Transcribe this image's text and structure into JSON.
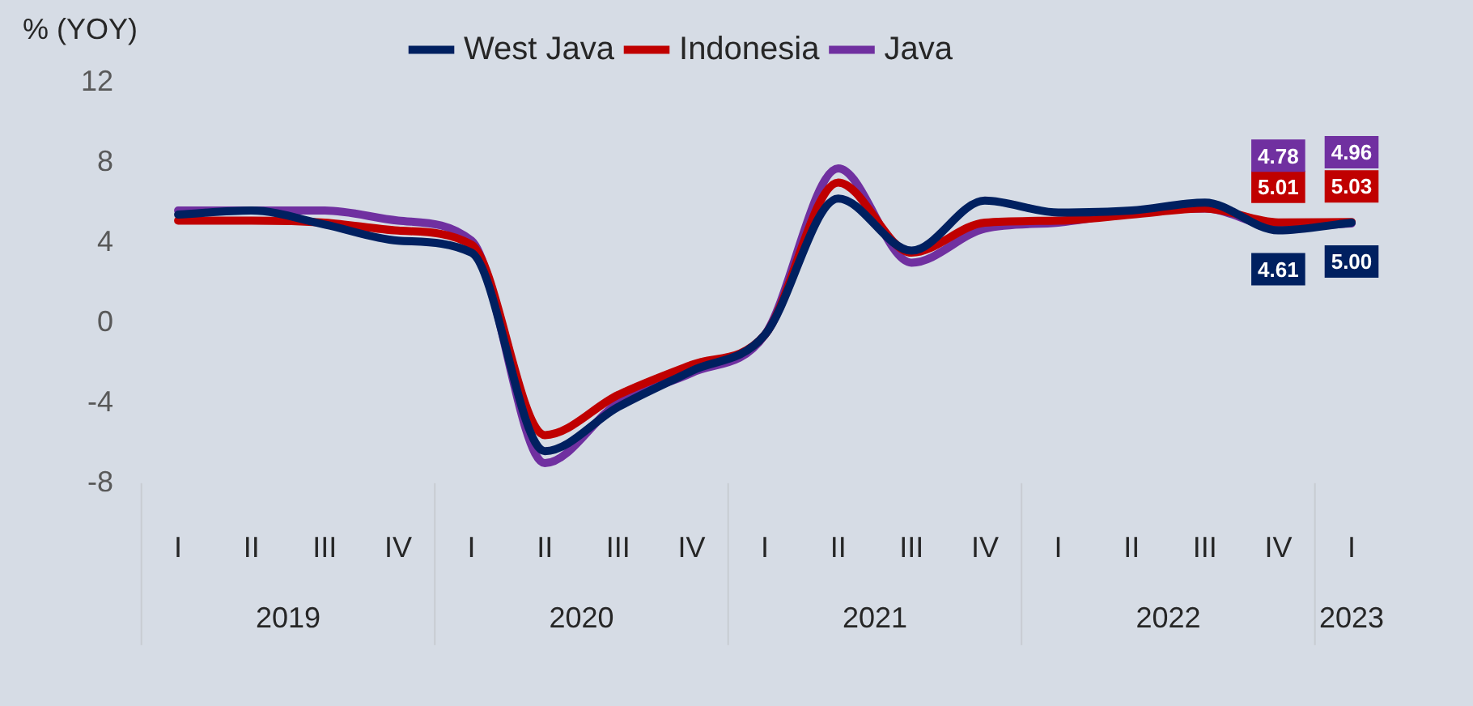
{
  "chart_data": {
    "type": "line",
    "ylabel": "% (YOY)",
    "legend": "top",
    "categories": [
      "I",
      "II",
      "III",
      "IV",
      "I",
      "II",
      "III",
      "IV",
      "I",
      "II",
      "III",
      "IV",
      "I",
      "II",
      "III",
      "IV",
      "I"
    ],
    "annotations": [
      "2019",
      "2020",
      "2021",
      "2022",
      "2023"
    ],
    "ylim": [
      -8,
      12
    ],
    "yticks": [
      -8,
      -4,
      0,
      4,
      8,
      12
    ],
    "grid": false,
    "marker": "none",
    "series": [
      {
        "name": "West Java",
        "color": "#002060",
        "values": [
          5.4,
          5.6,
          4.9,
          4.1,
          3.5,
          -6.4,
          -4.2,
          -2.4,
          -0.6,
          6.2,
          3.6,
          6.1,
          5.5,
          5.6,
          6.0,
          4.61,
          5.0
        ],
        "value_labels": [
          null,
          null,
          null,
          null,
          null,
          null,
          null,
          null,
          null,
          null,
          null,
          null,
          null,
          null,
          null,
          "4.61",
          "5.00"
        ]
      },
      {
        "name": "Indonesia",
        "color": "#c00000",
        "values": [
          5.1,
          5.1,
          5.0,
          4.6,
          3.9,
          -5.6,
          -3.6,
          -2.1,
          -0.6,
          7.0,
          3.5,
          5.0,
          5.1,
          5.4,
          5.7,
          5.01,
          5.03
        ],
        "value_labels": [
          null,
          null,
          null,
          null,
          null,
          null,
          null,
          null,
          null,
          null,
          null,
          null,
          null,
          null,
          null,
          "5.01",
          "5.03"
        ]
      },
      {
        "name": "Java",
        "color": "#7030a0",
        "values": [
          5.6,
          5.6,
          5.6,
          5.1,
          4.1,
          -7.0,
          -4.0,
          -2.5,
          -0.6,
          7.7,
          3.0,
          4.7,
          5.0,
          5.5,
          5.7,
          4.78,
          4.96
        ],
        "value_labels": [
          null,
          null,
          null,
          null,
          null,
          null,
          null,
          null,
          null,
          null,
          null,
          null,
          null,
          null,
          null,
          "4.78",
          "4.96"
        ]
      }
    ]
  }
}
